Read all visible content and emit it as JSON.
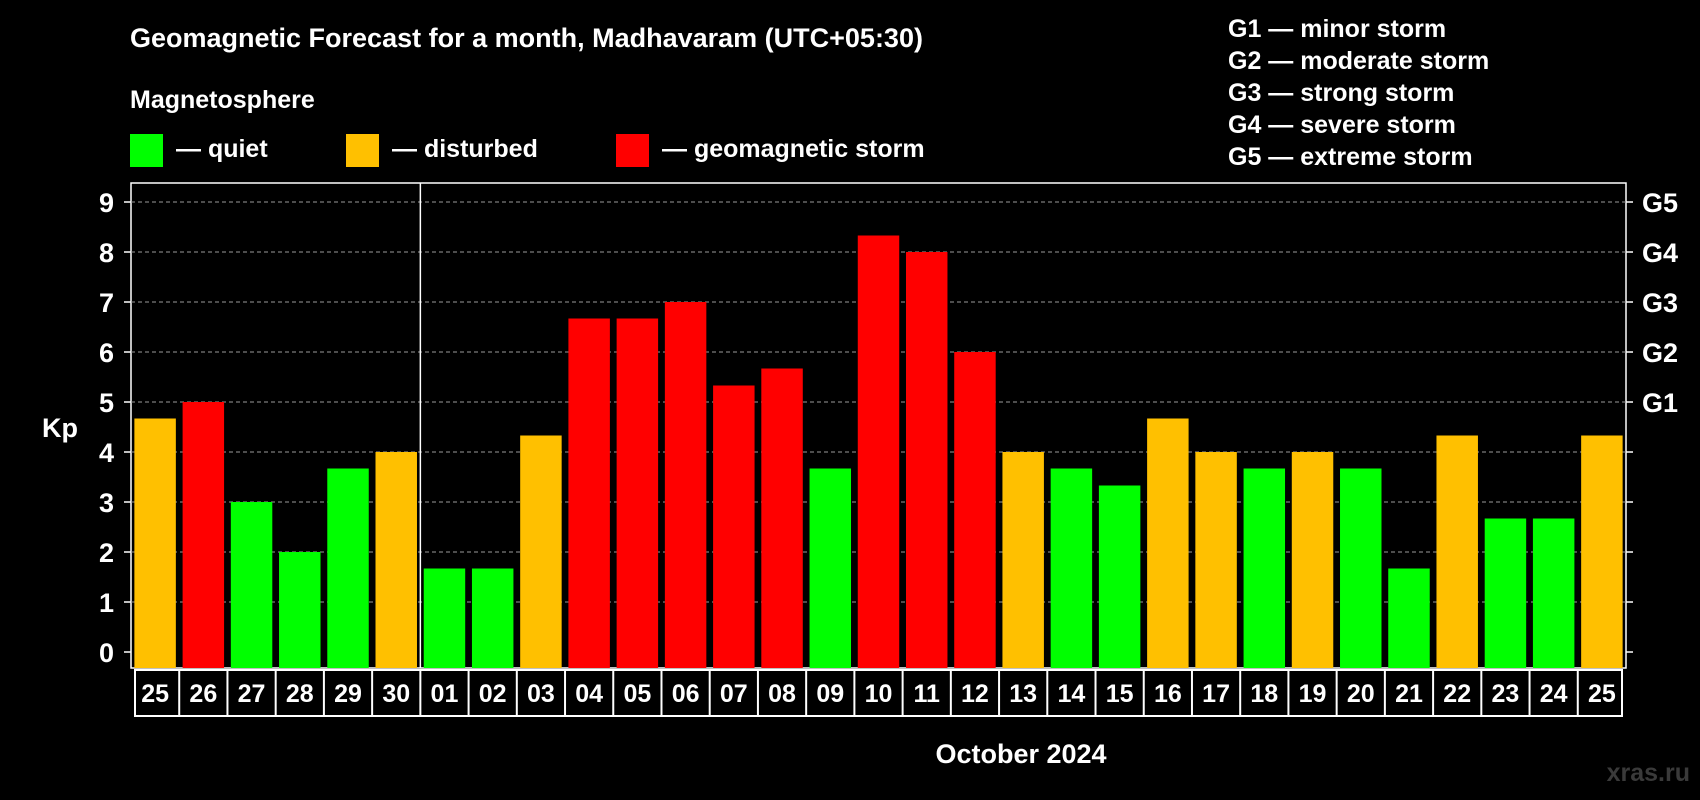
{
  "chart_data": {
    "type": "bar",
    "title": "Geomagnetic Forecast for a month, Madhavaram (UTC+05:30)",
    "legend_heading": "Magnetosphere",
    "legend": [
      {
        "label": "— quiet",
        "color": "#00ff00"
      },
      {
        "label": "— disturbed",
        "color": "#ffc000"
      },
      {
        "label": "— geomagnetic storm",
        "color": "#ff0000"
      }
    ],
    "storm_scale": [
      "G1 — minor storm",
      "G2 — moderate storm",
      "G3 — strong storm",
      "G4 — severe storm",
      "G5 — extreme storm"
    ],
    "ylabel": "Kp",
    "ylim": [
      0,
      9
    ],
    "yticks": [
      "0",
      "1",
      "2",
      "3",
      "4",
      "5",
      "6",
      "7",
      "8",
      "9"
    ],
    "right_ticks": [
      {
        "kp": 5,
        "label": "G1"
      },
      {
        "kp": 6,
        "label": "G2"
      },
      {
        "kp": 7,
        "label": "G3"
      },
      {
        "kp": 8,
        "label": "G4"
      },
      {
        "kp": 9,
        "label": "G5"
      }
    ],
    "grid": true,
    "xlabel": "October 2024",
    "month_boundary_after_index": 5,
    "categories": [
      "25",
      "26",
      "27",
      "28",
      "29",
      "30",
      "01",
      "02",
      "03",
      "04",
      "05",
      "06",
      "07",
      "08",
      "09",
      "10",
      "11",
      "12",
      "13",
      "14",
      "15",
      "16",
      "17",
      "18",
      "19",
      "20",
      "21",
      "22",
      "23",
      "24",
      "25"
    ],
    "values": [
      4.67,
      5.0,
      3.0,
      2.0,
      3.67,
      4.0,
      1.67,
      1.67,
      4.33,
      6.67,
      6.67,
      7.0,
      5.33,
      5.67,
      3.67,
      8.33,
      8.0,
      6.0,
      4.0,
      3.67,
      3.33,
      4.67,
      4.0,
      3.67,
      4.0,
      3.67,
      1.67,
      4.33,
      2.67,
      2.67,
      4.33
    ],
    "bar_colors": [
      "#ffc000",
      "#ff0000",
      "#00ff00",
      "#00ff00",
      "#00ff00",
      "#ffc000",
      "#00ff00",
      "#00ff00",
      "#ffc000",
      "#ff0000",
      "#ff0000",
      "#ff0000",
      "#ff0000",
      "#ff0000",
      "#00ff00",
      "#ff0000",
      "#ff0000",
      "#ff0000",
      "#ffc000",
      "#00ff00",
      "#00ff00",
      "#ffc000",
      "#ffc000",
      "#00ff00",
      "#ffc000",
      "#00ff00",
      "#00ff00",
      "#ffc000",
      "#00ff00",
      "#00ff00",
      "#ffc000"
    ]
  },
  "watermark": "xras.ru"
}
